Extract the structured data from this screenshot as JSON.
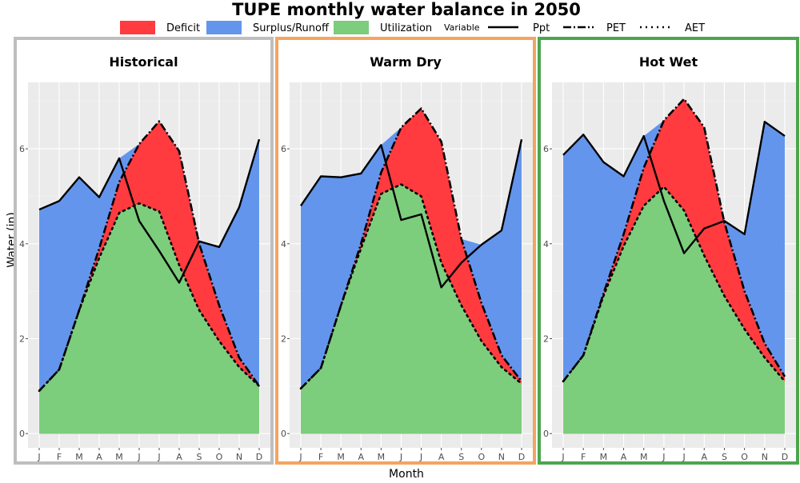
{
  "title": "TUPE monthly water balance in 2050",
  "legend": {
    "fill_items": [
      {
        "label": "Deficit",
        "color": "#FF3B3F"
      },
      {
        "label": "Surplus/Runoff",
        "color": "#6495ED"
      },
      {
        "label": "Utilization",
        "color": "#7CCD7C"
      }
    ],
    "variable_title": "Variable",
    "line_items": [
      {
        "label": "Ppt",
        "style": "solid"
      },
      {
        "label": "PET",
        "style": "dashdot"
      },
      {
        "label": "AET",
        "style": "dotted"
      }
    ]
  },
  "chart_data": {
    "type": "area",
    "title": "TUPE monthly water balance in 2050",
    "xlabel": "Month",
    "ylabel": "Water (in)",
    "categories": [
      "J",
      "F",
      "M",
      "A",
      "M",
      "J",
      "J",
      "A",
      "S",
      "O",
      "N",
      "D"
    ],
    "ylim": [
      -0.3,
      7.4
    ],
    "yticks": [
      0,
      2,
      4,
      6
    ],
    "grid": true,
    "legend_position": "top",
    "colors": {
      "deficit": "#FF3B3F",
      "surplus": "#6495ED",
      "utilization": "#7CCD7C"
    },
    "panels": [
      {
        "name": "Historical",
        "border_color": "#BEBEBE",
        "series": [
          {
            "name": "Ppt",
            "values": [
              4.72,
              4.9,
              5.4,
              4.98,
              5.8,
              4.48,
              3.85,
              3.18,
              4.05,
              3.93,
              4.77,
              6.2
            ]
          },
          {
            "name": "PET",
            "values": [
              0.9,
              1.35,
              2.6,
              3.9,
              5.3,
              6.1,
              6.58,
              5.95,
              4.0,
              2.7,
              1.6,
              1.0
            ]
          },
          {
            "name": "AET",
            "values": [
              0.9,
              1.35,
              2.6,
              3.7,
              4.65,
              4.85,
              4.68,
              3.55,
              2.6,
              1.95,
              1.4,
              1.0
            ]
          }
        ]
      },
      {
        "name": "Warm Dry",
        "border_color": "#F4A460",
        "series": [
          {
            "name": "Ppt",
            "values": [
              4.8,
              5.42,
              5.4,
              5.48,
              6.08,
              4.5,
              4.62,
              3.08,
              3.6,
              3.98,
              4.28,
              6.2
            ]
          },
          {
            "name": "PET",
            "values": [
              0.95,
              1.38,
              2.7,
              4.0,
              5.5,
              6.45,
              6.85,
              6.15,
              4.1,
              2.75,
              1.65,
              1.1
            ]
          },
          {
            "name": "AET",
            "values": [
              0.95,
              1.38,
              2.7,
              3.9,
              5.05,
              5.25,
              5.0,
              3.6,
              2.7,
              1.95,
              1.4,
              1.05
            ]
          }
        ]
      },
      {
        "name": "Hot Wet",
        "border_color": "#4CA64C",
        "series": [
          {
            "name": "Ppt",
            "values": [
              5.87,
              6.3,
              5.72,
              5.42,
              6.27,
              4.9,
              3.8,
              4.32,
              4.48,
              4.2,
              6.57,
              6.27
            ]
          },
          {
            "name": "PET",
            "values": [
              1.1,
              1.65,
              2.95,
              4.2,
              5.6,
              6.6,
              7.05,
              6.45,
              4.45,
              3.0,
              1.9,
              1.2
            ]
          },
          {
            "name": "AET",
            "values": [
              1.1,
              1.65,
              2.9,
              3.95,
              4.8,
              5.2,
              4.7,
              3.75,
              2.9,
              2.2,
              1.6,
              1.1
            ]
          }
        ]
      }
    ]
  }
}
